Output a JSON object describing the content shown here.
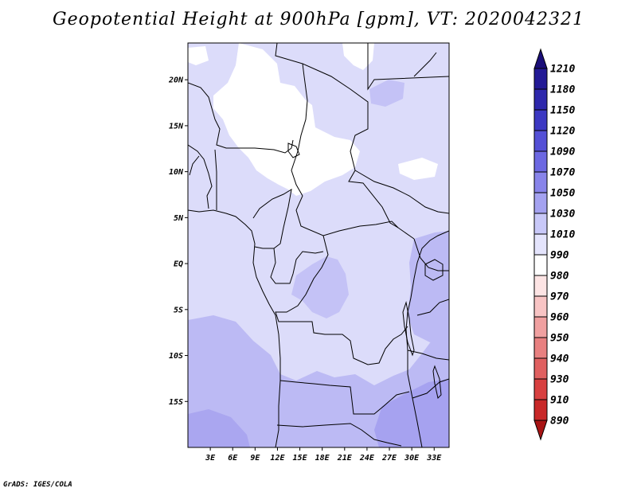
{
  "title": "Geopotential Height at 900hPa [gpm], VT: 2020042321",
  "credit": "GrADS: IGES/COLA",
  "map": {
    "lon_range": [
      0,
      35
    ],
    "lat_range": [
      -20,
      24
    ],
    "lat_ticks": [
      {
        "value": 20,
        "label": "20N"
      },
      {
        "value": 15,
        "label": "15N"
      },
      {
        "value": 10,
        "label": "10N"
      },
      {
        "value": 5,
        "label": "5N"
      },
      {
        "value": 0,
        "label": "EQ"
      },
      {
        "value": -5,
        "label": "5S"
      },
      {
        "value": -10,
        "label": "10S"
      },
      {
        "value": -15,
        "label": "15S"
      }
    ],
    "lon_ticks": [
      {
        "value": 3,
        "label": "3E"
      },
      {
        "value": 6,
        "label": "6E"
      },
      {
        "value": 9,
        "label": "9E"
      },
      {
        "value": 12,
        "label": "12E"
      },
      {
        "value": 15,
        "label": "15E"
      },
      {
        "value": 18,
        "label": "18E"
      },
      {
        "value": 21,
        "label": "21E"
      },
      {
        "value": 24,
        "label": "24E"
      },
      {
        "value": 27,
        "label": "27E"
      },
      {
        "value": 30,
        "label": "30E"
      },
      {
        "value": 33,
        "label": "33E"
      }
    ]
  },
  "colorbar": {
    "levels": [
      "1210",
      "1180",
      "1150",
      "1120",
      "1090",
      "1070",
      "1050",
      "1030",
      "1010",
      "990",
      "980",
      "970",
      "960",
      "950",
      "940",
      "930",
      "910",
      "890"
    ],
    "colors": [
      "#1a0e78",
      "#231a96",
      "#2e28ac",
      "#3c38c2",
      "#5450d6",
      "#6c68e2",
      "#8884ea",
      "#a4a2f0",
      "#c8c8f8",
      "#e4e4fc",
      "#ffffff",
      "#fde4e4",
      "#f8c4c4",
      "#f0a0a0",
      "#e88080",
      "#e06060",
      "#d84040",
      "#c82828",
      "#a81414"
    ]
  }
}
